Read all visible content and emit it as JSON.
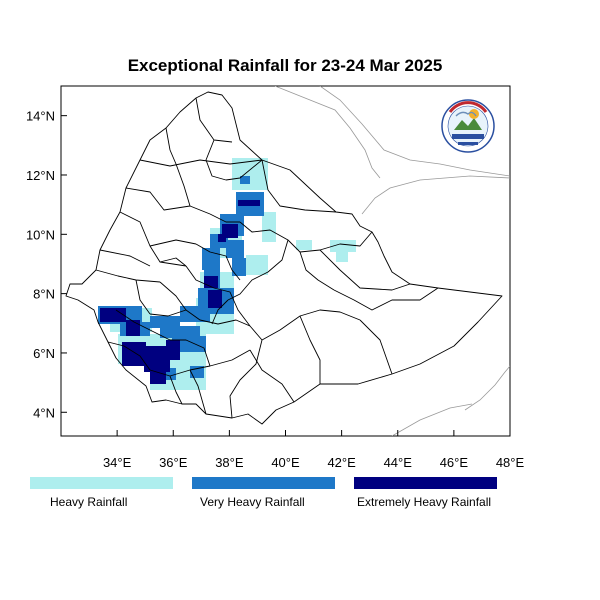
{
  "title": "Exceptional Rainfall for 23-24 Mar 2025",
  "colors": {
    "heavy": "#aeeeee",
    "very_heavy": "#1e78c8",
    "extremely_heavy": "#000080",
    "boundary": "#000000",
    "neighbor_boundary": "#999999"
  },
  "map": {
    "lon_range": [
      32,
      48
    ],
    "lat_range": [
      3.2,
      15
    ],
    "x_ticks": [
      "34°E",
      "36°E",
      "38°E",
      "40°E",
      "42°E",
      "44°E",
      "46°E",
      "48°E"
    ],
    "y_ticks": [
      "4°N",
      "6°N",
      "8°N",
      "10°N",
      "12°N",
      "14°N"
    ],
    "logo": "agency-logo"
  },
  "legend": [
    {
      "label": "Heavy Rainfall",
      "color": "#aeeeee"
    },
    {
      "label": "Very Heavy Rainfall",
      "color": "#1e78c8"
    },
    {
      "label": "Extremely Heavy Rainfall",
      "color": "#000080"
    }
  ]
}
